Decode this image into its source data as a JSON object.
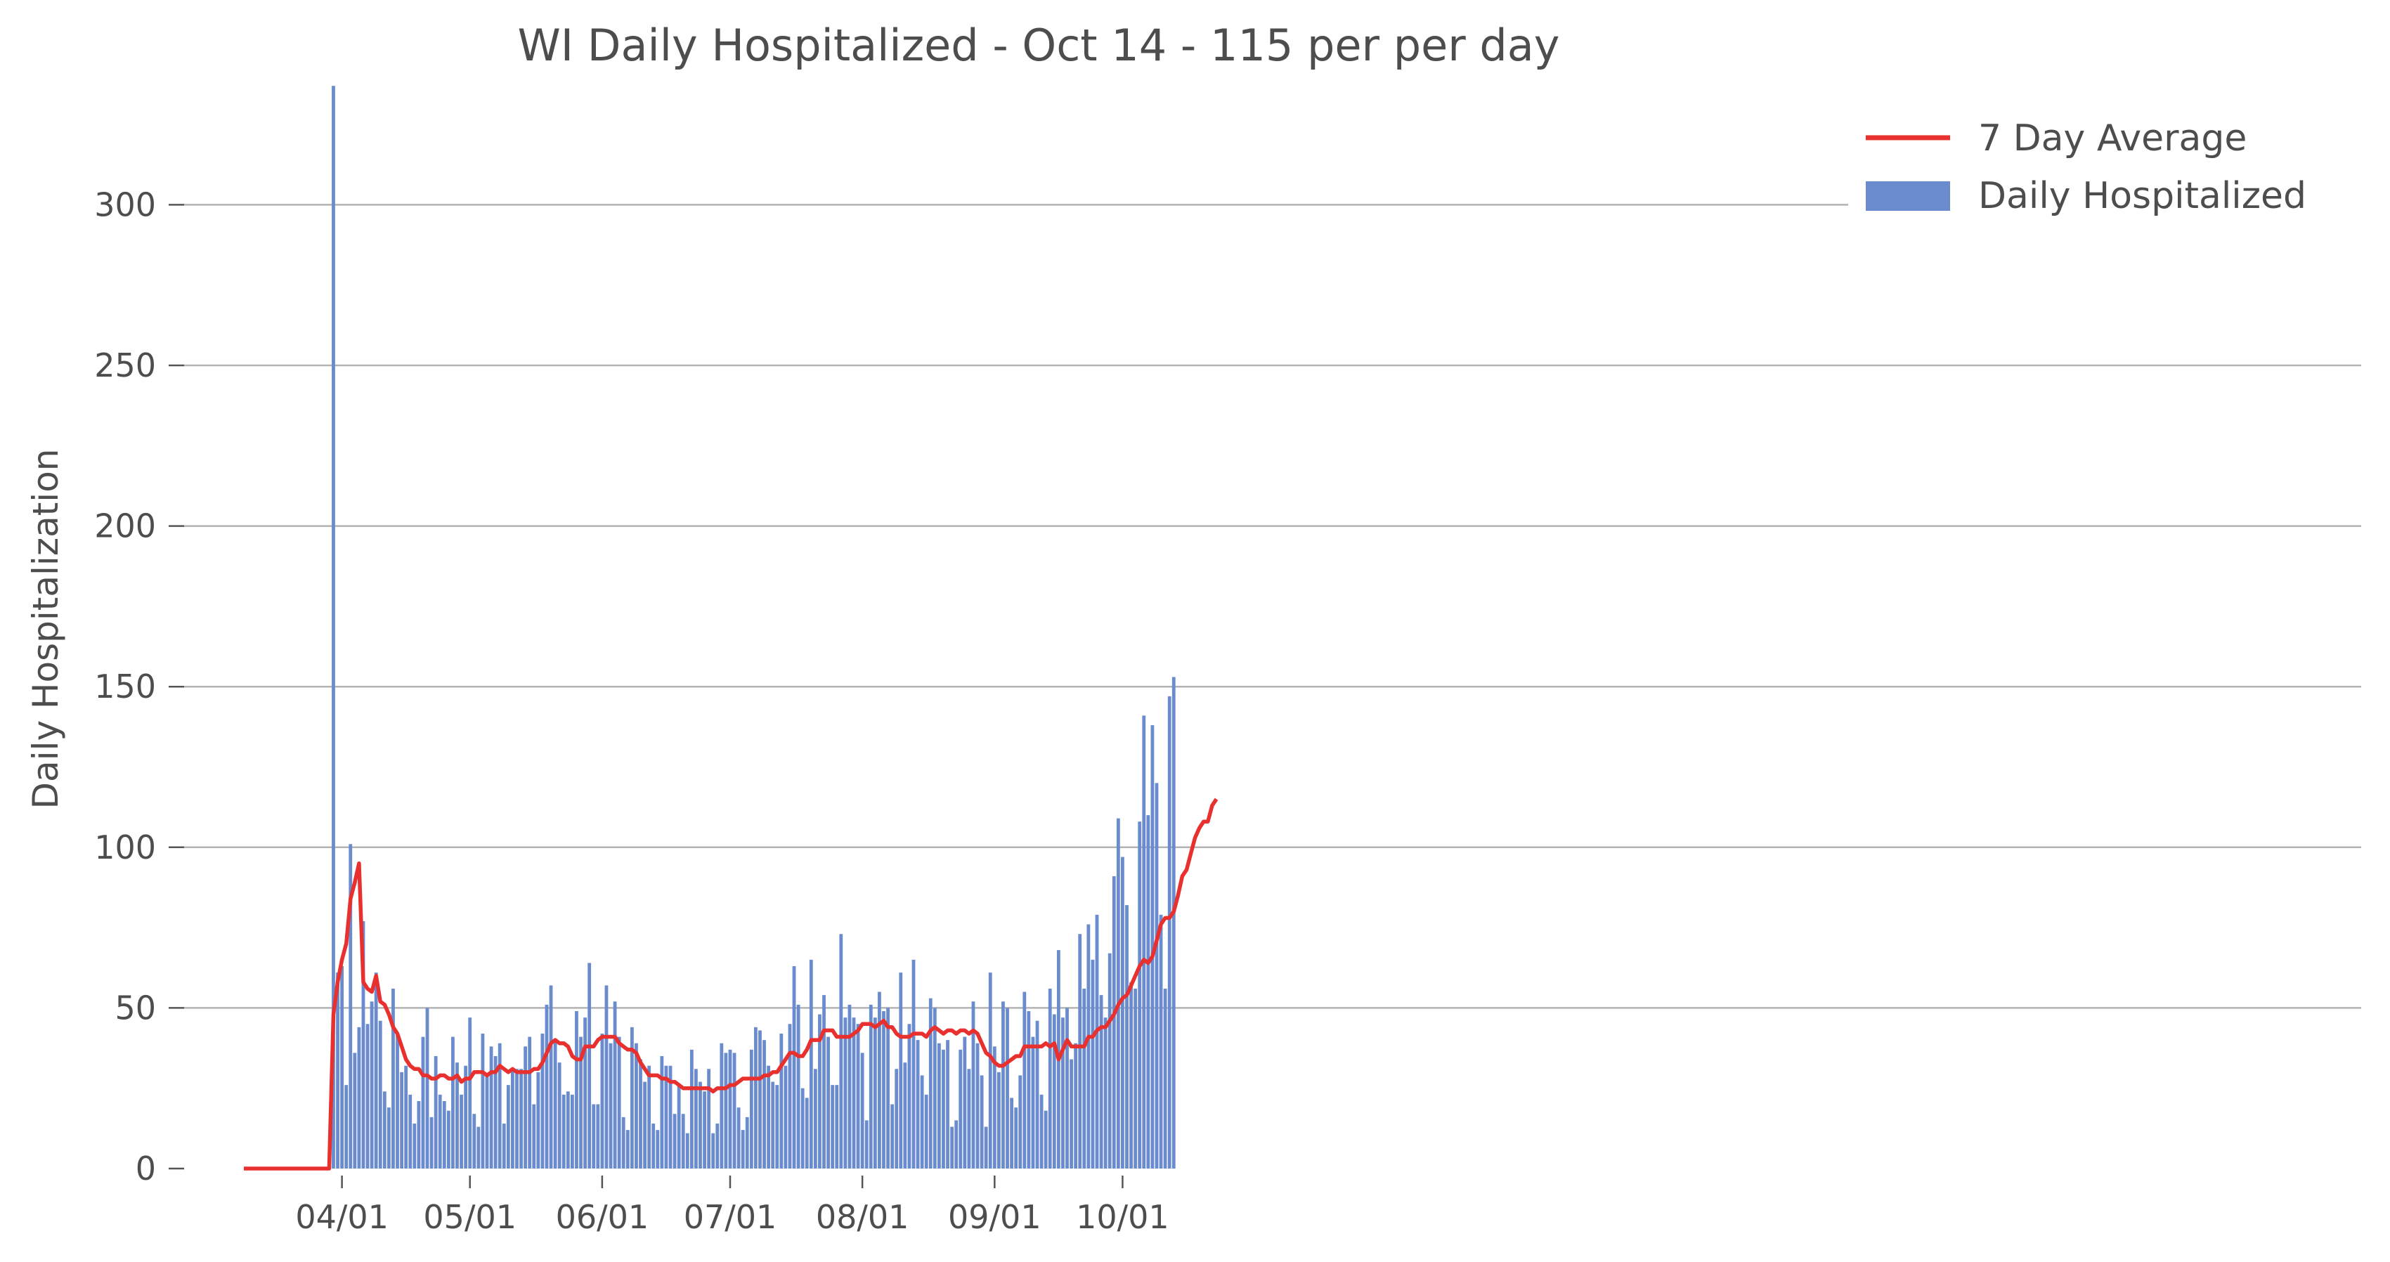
{
  "chart_data": {
    "type": "bar",
    "title": "WI Daily Hospitalized - Oct 14 - 115 per per day",
    "xlabel": "",
    "ylabel": "Daily Hospitalization",
    "ylim": [
      0,
      337
    ],
    "yticks": [
      0,
      50,
      100,
      150,
      200,
      250,
      300
    ],
    "grid": "horizontal",
    "legend_position": "top-right",
    "x_start_date": "2020-03-09",
    "xticks": [
      {
        "label": "04/01",
        "date": "2020-04-01"
      },
      {
        "label": "05/01",
        "date": "2020-05-01"
      },
      {
        "label": "06/01",
        "date": "2020-06-01"
      },
      {
        "label": "07/01",
        "date": "2020-07-01"
      },
      {
        "label": "08/01",
        "date": "2020-08-01"
      },
      {
        "label": "09/01",
        "date": "2020-09-01"
      },
      {
        "label": "10/01",
        "date": "2020-10-01"
      }
    ],
    "bar_color": "#6a8ccf",
    "line_color": "#e8302e",
    "series": [
      {
        "name": "Daily Hospitalized",
        "kind": "bar",
        "start_date": "2020-03-30",
        "values": [
          338,
          61,
          63,
          26,
          101,
          36,
          44,
          77,
          45,
          52,
          61,
          46,
          24,
          19,
          56,
          42,
          30,
          32,
          23,
          14,
          21,
          41,
          50,
          16,
          35,
          23,
          21,
          18,
          41,
          33,
          23,
          32,
          47,
          17,
          13,
          42,
          29,
          38,
          35,
          39,
          14,
          26,
          31,
          31,
          31,
          38,
          41,
          20,
          30,
          42,
          51,
          57,
          40,
          33,
          23,
          24,
          23,
          49,
          41,
          47,
          64,
          20,
          20,
          42,
          57,
          39,
          52,
          41,
          16,
          12,
          44,
          39,
          34,
          27,
          32,
          14,
          12,
          35,
          32,
          32,
          17,
          26,
          17,
          11,
          37,
          31,
          27,
          24,
          31,
          11,
          14,
          39,
          36,
          37,
          36,
          19,
          12,
          16,
          37,
          44,
          43,
          40,
          32,
          27,
          26,
          42,
          32,
          45,
          63,
          51,
          25,
          22,
          65,
          31,
          48,
          54,
          41,
          26,
          26,
          73,
          47,
          51,
          47,
          45,
          36,
          15,
          51,
          47,
          55,
          49,
          50,
          20,
          31,
          61,
          33,
          45,
          65,
          40,
          29,
          23,
          53,
          50,
          39,
          37,
          40,
          13,
          15,
          37,
          41,
          31,
          52,
          39,
          29,
          13,
          61,
          38,
          30,
          52,
          50,
          22,
          19,
          29,
          55,
          49,
          41,
          46,
          23,
          18,
          56,
          48,
          68,
          47,
          50,
          34,
          39,
          73,
          56,
          76,
          65,
          79,
          54,
          47,
          67,
          91,
          109,
          97,
          82,
          58,
          56,
          108,
          141,
          110,
          138,
          120,
          79,
          56,
          147,
          153
        ]
      },
      {
        "name": "7 Day Average",
        "kind": "line",
        "start_date": "2020-03-09",
        "values": [
          0,
          0,
          0,
          0,
          0,
          0,
          0,
          0,
          0,
          0,
          0,
          0,
          0,
          0,
          0,
          0,
          0,
          0,
          0,
          0,
          0,
          48,
          58,
          65,
          70,
          84,
          89,
          95,
          58,
          56,
          55,
          60,
          52,
          51,
          48,
          44,
          42,
          38,
          34,
          32,
          31,
          31,
          29,
          29,
          28,
          28,
          29,
          29,
          28,
          28,
          29,
          27,
          28,
          28,
          30,
          30,
          30,
          29,
          30,
          30,
          32,
          31,
          30,
          31,
          30,
          30,
          30,
          30,
          31,
          31,
          33,
          36,
          39,
          40,
          39,
          39,
          38,
          35,
          34,
          34,
          38,
          38,
          38,
          40,
          41,
          41,
          41,
          41,
          39,
          38,
          37,
          37,
          36,
          33,
          31,
          29,
          29,
          29,
          28,
          28,
          27,
          27,
          26,
          25,
          25,
          25,
          25,
          25,
          25,
          25,
          24,
          25,
          25,
          25,
          26,
          26,
          27,
          28,
          28,
          28,
          28,
          28,
          29,
          29,
          30,
          30,
          32,
          34,
          36,
          36,
          35,
          35,
          37,
          40,
          40,
          40,
          43,
          43,
          43,
          41,
          41,
          41,
          41,
          42,
          43,
          45,
          45,
          45,
          44,
          45,
          46,
          44,
          44,
          42,
          41,
          41,
          41,
          42,
          42,
          42,
          41,
          43,
          44,
          43,
          42,
          43,
          43,
          42,
          43,
          43,
          42,
          43,
          42,
          39,
          36,
          35,
          33,
          32,
          32,
          33,
          34,
          35,
          35,
          38,
          38,
          38,
          38,
          38,
          39,
          38,
          39,
          34,
          37,
          40,
          38,
          38,
          38,
          38,
          41,
          41,
          43,
          44,
          44,
          46,
          48,
          51,
          53,
          54,
          57,
          60,
          63,
          65,
          64,
          66,
          71,
          76,
          78,
          78,
          80,
          85,
          91,
          93,
          98,
          103,
          106,
          108,
          108,
          113,
          115
        ]
      }
    ]
  },
  "legend": {
    "items": [
      {
        "label": "7 Day Average",
        "kind": "line"
      },
      {
        "label": "Daily Hospitalized",
        "kind": "bar"
      }
    ]
  }
}
